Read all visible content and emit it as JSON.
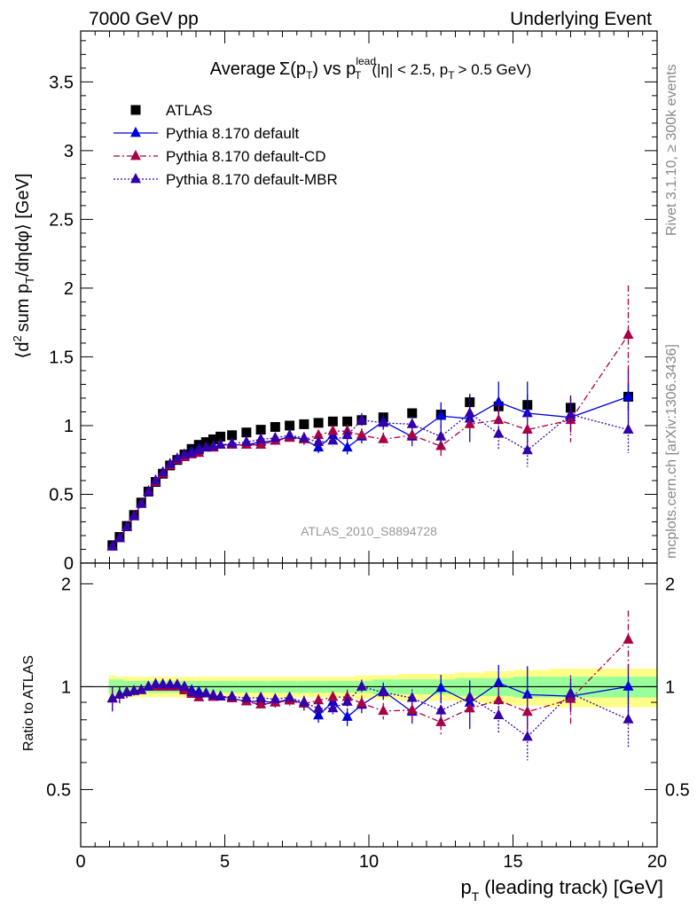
{
  "header": {
    "left": "7000 GeV pp",
    "right": "Underlying Event"
  },
  "side_labels": {
    "rivet": "Rivet 3.1.10, ≥ 300k events",
    "mcplots": "mcplots.cern.ch [arXiv:1306.3436]"
  },
  "title_parts": {
    "prefix": "Average",
    "sigma": "Σ(p",
    "t_sub": "T",
    "mid": ") vs p",
    "lead_sup": "lead",
    "t_sub2": "T",
    "cut1": "(|η| < 2.5, p",
    "t_sub3": "T",
    "cut2": "> 0.5 GeV)"
  },
  "watermark": "ATLAS_2010_S8894728",
  "ylabel_parts": {
    "a": "⟨d",
    "sup": "2",
    "b": "sum p",
    "sub": "T",
    "c": "/dηdφ⟩ [GeV]"
  },
  "ratio_ylabel": "Ratio to ATLAS",
  "xlabel_parts": {
    "a": "p",
    "sub": "T",
    "b": "(leading track) [GeV]"
  },
  "colors": {
    "atlas": "#000000",
    "default": "#0000dd",
    "cd": "#aa0044",
    "mbr": "#3300aa",
    "band_inner": "#99ff99",
    "band_outer": "#ffff88"
  },
  "chart_data": {
    "type": "scatter",
    "xlim": [
      0,
      20
    ],
    "ylim": [
      0,
      3.87
    ],
    "ratio_ylim": [
      0.34,
      2.3
    ],
    "xticks": [
      "0",
      "5",
      "10",
      "15",
      "20"
    ],
    "yticks": [
      "0",
      "0.5",
      "1",
      "1.5",
      "2",
      "2.5",
      "3",
      "3.5"
    ],
    "ratio_yticks": [
      "0.5",
      "1",
      "2"
    ],
    "x": [
      1.1,
      1.35,
      1.6,
      1.85,
      2.1,
      2.35,
      2.6,
      2.85,
      3.1,
      3.35,
      3.6,
      3.85,
      4.1,
      4.35,
      4.6,
      4.85,
      5.25,
      5.75,
      6.25,
      6.75,
      7.25,
      7.75,
      8.25,
      8.75,
      9.25,
      9.75,
      10.5,
      11.5,
      12.5,
      13.5,
      14.5,
      15.5,
      17.0,
      19.0
    ],
    "legend": [
      {
        "name": "ATLAS",
        "key": "atlas"
      },
      {
        "name": "Pythia 8.170 default",
        "key": "default"
      },
      {
        "name": "Pythia 8.170 default-CD",
        "key": "cd"
      },
      {
        "name": "Pythia 8.170 default-MBR",
        "key": "mbr"
      }
    ],
    "series": [
      {
        "name": "ATLAS",
        "key": "atlas",
        "values": [
          0.13,
          0.19,
          0.27,
          0.35,
          0.44,
          0.52,
          0.59,
          0.65,
          0.71,
          0.75,
          0.79,
          0.83,
          0.86,
          0.88,
          0.9,
          0.92,
          0.93,
          0.95,
          0.97,
          0.99,
          1.0,
          1.01,
          1.02,
          1.03,
          1.03,
          1.04,
          1.06,
          1.09,
          1.08,
          1.17,
          1.14,
          1.15,
          1.13,
          1.21
        ],
        "errors": [
          0.01,
          0.01,
          0.01,
          0.01,
          0.01,
          0.01,
          0.01,
          0.01,
          0.01,
          0.01,
          0.01,
          0.01,
          0.01,
          0.01,
          0.01,
          0.01,
          0.01,
          0.01,
          0.01,
          0.01,
          0.02,
          0.02,
          0.02,
          0.02,
          0.02,
          0.03,
          0.03,
          0.03,
          0.04,
          0.06,
          0.07,
          0.08,
          0.08,
          0.1
        ]
      },
      {
        "name": "Pythia 8.170 default",
        "key": "default",
        "values": [
          0.12,
          0.18,
          0.26,
          0.34,
          0.43,
          0.52,
          0.59,
          0.65,
          0.71,
          0.75,
          0.78,
          0.81,
          0.83,
          0.84,
          0.84,
          0.86,
          0.86,
          0.86,
          0.88,
          0.89,
          0.92,
          0.9,
          0.84,
          0.93,
          0.84,
          0.92,
          1.03,
          0.92,
          1.07,
          1.05,
          1.17,
          1.09,
          1.06,
          1.21
        ],
        "errors": [
          0.01,
          0.01,
          0.01,
          0.01,
          0.01,
          0.01,
          0.01,
          0.01,
          0.01,
          0.01,
          0.01,
          0.01,
          0.01,
          0.01,
          0.01,
          0.02,
          0.02,
          0.02,
          0.03,
          0.03,
          0.03,
          0.04,
          0.04,
          0.05,
          0.05,
          0.05,
          0.06,
          0.07,
          0.1,
          0.17,
          0.15,
          0.23,
          0.1,
          0.2
        ]
      },
      {
        "name": "Pythia 8.170 default-CD",
        "key": "cd",
        "values": [
          0.12,
          0.18,
          0.26,
          0.34,
          0.43,
          0.52,
          0.59,
          0.65,
          0.71,
          0.75,
          0.77,
          0.79,
          0.8,
          0.84,
          0.84,
          0.86,
          0.86,
          0.86,
          0.86,
          0.89,
          0.91,
          0.9,
          0.93,
          0.96,
          0.96,
          0.93,
          0.9,
          0.93,
          0.85,
          1.01,
          1.04,
          0.97,
          1.04,
          1.66
        ],
        "errors": [
          0.01,
          0.01,
          0.01,
          0.01,
          0.01,
          0.01,
          0.01,
          0.01,
          0.01,
          0.01,
          0.01,
          0.01,
          0.01,
          0.01,
          0.01,
          0.02,
          0.02,
          0.02,
          0.02,
          0.03,
          0.03,
          0.04,
          0.04,
          0.04,
          0.05,
          0.05,
          0.05,
          0.06,
          0.07,
          0.1,
          0.11,
          0.13,
          0.16,
          0.36
        ]
      },
      {
        "name": "Pythia 8.170 default-MBR",
        "key": "mbr",
        "values": [
          0.12,
          0.18,
          0.26,
          0.34,
          0.43,
          0.52,
          0.6,
          0.66,
          0.72,
          0.76,
          0.79,
          0.8,
          0.82,
          0.84,
          0.85,
          0.86,
          0.87,
          0.88,
          0.9,
          0.91,
          0.93,
          0.91,
          0.88,
          0.89,
          0.93,
          1.04,
          1.02,
          1.01,
          0.92,
          1.09,
          0.94,
          0.82,
          1.08,
          0.97
        ],
        "errors": [
          0.01,
          0.01,
          0.01,
          0.01,
          0.01,
          0.01,
          0.01,
          0.01,
          0.01,
          0.01,
          0.01,
          0.01,
          0.01,
          0.01,
          0.01,
          0.02,
          0.02,
          0.02,
          0.02,
          0.03,
          0.03,
          0.04,
          0.04,
          0.04,
          0.05,
          0.05,
          0.05,
          0.06,
          0.08,
          0.1,
          0.11,
          0.12,
          0.14,
          0.17
        ]
      }
    ],
    "ratio_band": {
      "inner": [
        0.05,
        0.05,
        0.04,
        0.04,
        0.04,
        0.04,
        0.04,
        0.04,
        0.04,
        0.04,
        0.04,
        0.04,
        0.04,
        0.04,
        0.04,
        0.04,
        0.04,
        0.04,
        0.04,
        0.04,
        0.04,
        0.04,
        0.04,
        0.04,
        0.04,
        0.04,
        0.05,
        0.05,
        0.05,
        0.06,
        0.06,
        0.07,
        0.07,
        0.07
      ],
      "outer": [
        0.08,
        0.07,
        0.07,
        0.07,
        0.07,
        0.07,
        0.07,
        0.07,
        0.07,
        0.07,
        0.07,
        0.07,
        0.07,
        0.07,
        0.07,
        0.07,
        0.07,
        0.07,
        0.07,
        0.07,
        0.07,
        0.07,
        0.07,
        0.07,
        0.07,
        0.08,
        0.08,
        0.09,
        0.09,
        0.1,
        0.11,
        0.12,
        0.13,
        0.13
      ]
    }
  }
}
